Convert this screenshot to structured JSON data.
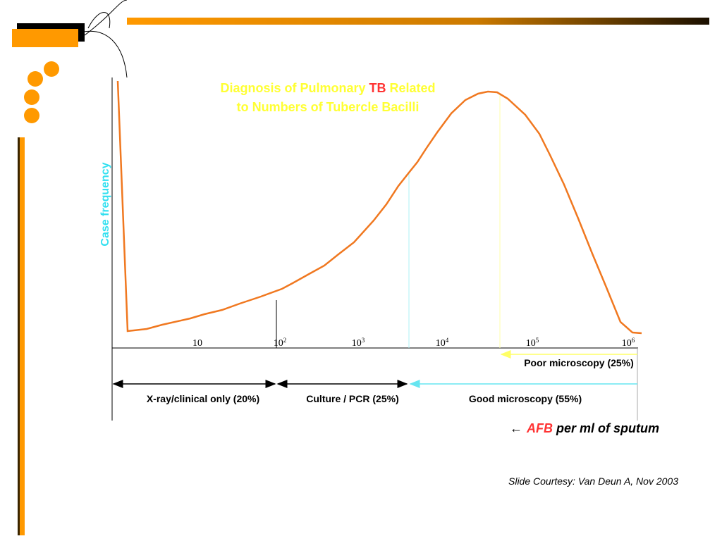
{
  "title": {
    "line1_before": "Diagnosis of Pulmonary ",
    "line1_highlight": "TB",
    "line1_after": " Related",
    "line2": "to Numbers of Tubercle Bacilli"
  },
  "y_label": "Case frequency",
  "x_ticks": [
    {
      "base": "10"
    },
    {
      "base": "10",
      "exp": "2"
    },
    {
      "base": "10",
      "exp": "3"
    },
    {
      "base": "10",
      "exp": "4"
    },
    {
      "base": "10",
      "exp": "5"
    },
    {
      "base": "10",
      "exp": "6"
    }
  ],
  "ranges": {
    "poor": "Poor microscopy (25%)",
    "xray": "X-ray/clinical only (20%)",
    "culture": "Culture / PCR (25%)",
    "good": "Good microscopy (55%)"
  },
  "x_label": {
    "arrow": "←",
    "highlight": "AFB",
    "rest": " per ml of sputum"
  },
  "footer": "Slide Courtesy: Van Deun A, Nov 2003"
}
